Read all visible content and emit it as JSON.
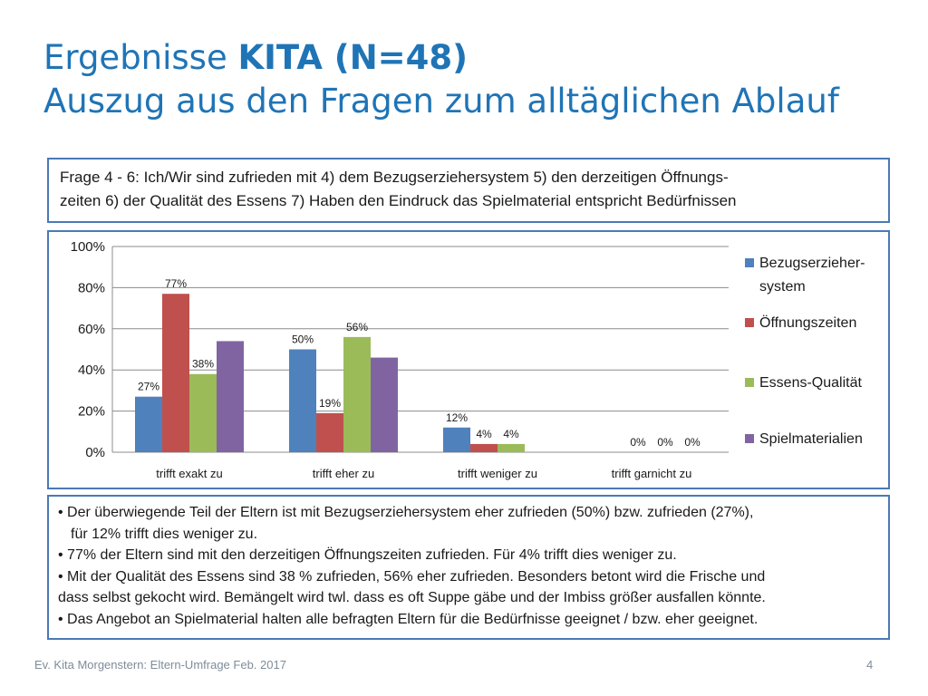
{
  "slide": {
    "title_line1_prefix": "Ergebnisse ",
    "title_line1_bold": "KITA (N=48)",
    "title_line2": "Auszug aus den Fragen zum alltäglichen Ablauf",
    "question_line1": "Frage 4 - 6: Ich/Wir sind zufrieden mit 4) dem Bezugserziehersystem 5) den derzeitigen Öffnungs-",
    "question_line2": "zeiten 6) der Qualität des Essens  7) Haben den Eindruck das Spielmaterial entspricht Bedürfnissen",
    "bullets": [
      "• Der überwiegende Teil der Eltern ist mit Bezugserziehersystem eher zufrieden (50%) bzw. zufrieden (27%),",
      "für 12% trifft dies weniger zu.",
      "• 77% der Eltern sind mit den derzeitigen Öffnungszeiten zufrieden. Für 4% trifft dies weniger zu.",
      "• Mit der Qualität des Essens sind 38 % zufrieden, 56% eher zufrieden. Besonders betont wird die Frische und",
      "dass selbst gekocht wird. Bemängelt wird twl. dass es oft Suppe gäbe und der Imbiss größer ausfallen könnte.",
      "• Das Angebot an Spielmaterial halten alle befragten Eltern für die Bedürfnisse geeignet / bzw. eher geeignet."
    ],
    "footer": "Ev. Kita Morgenstern: Eltern-Umfrage Feb. 2017",
    "page_number": "4"
  },
  "chart_data": {
    "type": "bar",
    "categories": [
      "trifft exakt zu",
      "trifft eher zu",
      "trifft weniger zu",
      "trifft garnicht zu"
    ],
    "series": [
      {
        "name": "Bezugserzieher-system",
        "legend_lines": [
          "Bezugserzieher-",
          "system"
        ],
        "color": "#4f81bd",
        "values": [
          27,
          50,
          12,
          0
        ],
        "labels": [
          "27%",
          "50%",
          "12%",
          ""
        ]
      },
      {
        "name": "Öffnungszeiten",
        "legend_lines": [
          "Öffnungszeiten"
        ],
        "color": "#c0504d",
        "values": [
          77,
          19,
          4,
          0
        ],
        "labels": [
          "77%",
          "19%",
          "4%",
          "0%"
        ]
      },
      {
        "name": "Essens-Qualität",
        "legend_lines": [
          "Essens-Qualität"
        ],
        "color": "#9bbb59",
        "values": [
          38,
          56,
          4,
          0
        ],
        "labels": [
          "38%",
          "56%",
          "4%",
          "0%"
        ]
      },
      {
        "name": "Spielmaterialien",
        "legend_lines": [
          "Spielmaterialien"
        ],
        "color": "#8064a2",
        "values": [
          54,
          46,
          0,
          0
        ],
        "labels": [
          "",
          "",
          "",
          "0%"
        ]
      }
    ],
    "y_ticks": [
      "0%",
      "20%",
      "40%",
      "60%",
      "80%",
      "100%"
    ],
    "ylim": [
      0,
      100
    ],
    "grid": true,
    "legend": "right"
  }
}
